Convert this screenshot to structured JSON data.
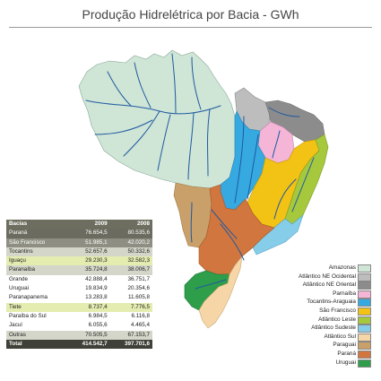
{
  "title": "Produção Hidrelétrica por Bacia - GWh",
  "table": {
    "headers": [
      "Bacias",
      "2009",
      "2008"
    ],
    "rows": [
      {
        "name": "Paraná",
        "v2009": "76.654,5",
        "v2008": "80.535,6",
        "bg": "#6b6c5f",
        "fg": "#ffffff"
      },
      {
        "name": "São Francisco",
        "v2009": "51.985,1",
        "v2008": "42.020,2",
        "bg": "#8e8f82",
        "fg": "#ffffff"
      },
      {
        "name": "Tocantins",
        "v2009": "52.657,6",
        "v2008": "50.332,6",
        "bg": "#d4d6c9",
        "fg": "#222222"
      },
      {
        "name": "Iguaçu",
        "v2009": "29.230,3",
        "v2008": "32.582,3",
        "bg": "#e4ecb0",
        "fg": "#222222"
      },
      {
        "name": "Paranaíba",
        "v2009": "35.724,8",
        "v2008": "38.006,7",
        "bg": "#d4d6c9",
        "fg": "#222222"
      },
      {
        "name": "Grande",
        "v2009": "42.888,4",
        "v2008": "36.751,7",
        "bg": "#ffffff",
        "fg": "#222222"
      },
      {
        "name": "Uruguai",
        "v2009": "19.834,9",
        "v2008": "20.354,6",
        "bg": "#ffffff",
        "fg": "#222222"
      },
      {
        "name": "Paranapanema",
        "v2009": "13.283,8",
        "v2008": "11.605,8",
        "bg": "#ffffff",
        "fg": "#222222"
      },
      {
        "name": "Tiete",
        "v2009": "8.737,4",
        "v2008": "7.776,5",
        "bg": "#e4ecb0",
        "fg": "#222222"
      },
      {
        "name": "Paraíba do Sul",
        "v2009": "6.984,5",
        "v2008": "6.116,8",
        "bg": "#ffffff",
        "fg": "#222222"
      },
      {
        "name": "Jacuí",
        "v2009": "6.055,6",
        "v2008": "4.465,4",
        "bg": "#ffffff",
        "fg": "#222222"
      },
      {
        "name": "Outras",
        "v2009": "70.505,5",
        "v2008": "67.153,7",
        "bg": "#d4d6c9",
        "fg": "#222222"
      }
    ],
    "total": {
      "name": "Total",
      "v2009": "414.542,7",
      "v2008": "397.701,6"
    }
  },
  "legend": [
    {
      "label": "Amazonas",
      "color": "#cfe5d6"
    },
    {
      "label": "Atlântico NE Ocidental",
      "color": "#bdbdbd"
    },
    {
      "label": "Atlântico NE Oriental",
      "color": "#8c8c8c"
    },
    {
      "label": "Parnaíba",
      "color": "#f4b5d7"
    },
    {
      "label": "Tocantins-Araguaia",
      "color": "#35a9e0"
    },
    {
      "label": "São Francisco",
      "color": "#f2c214"
    },
    {
      "label": "Atlântico Leste",
      "color": "#a6c83c"
    },
    {
      "label": "Atlântico Sudeste",
      "color": "#86cde9"
    },
    {
      "label": "Atlântico Sul",
      "color": "#f6d6a6"
    },
    {
      "label": "Paraguai",
      "color": "#c9a06a"
    },
    {
      "label": "Paraná",
      "color": "#d0763e"
    },
    {
      "label": "Uruguai",
      "color": "#2f9e4a"
    }
  ]
}
